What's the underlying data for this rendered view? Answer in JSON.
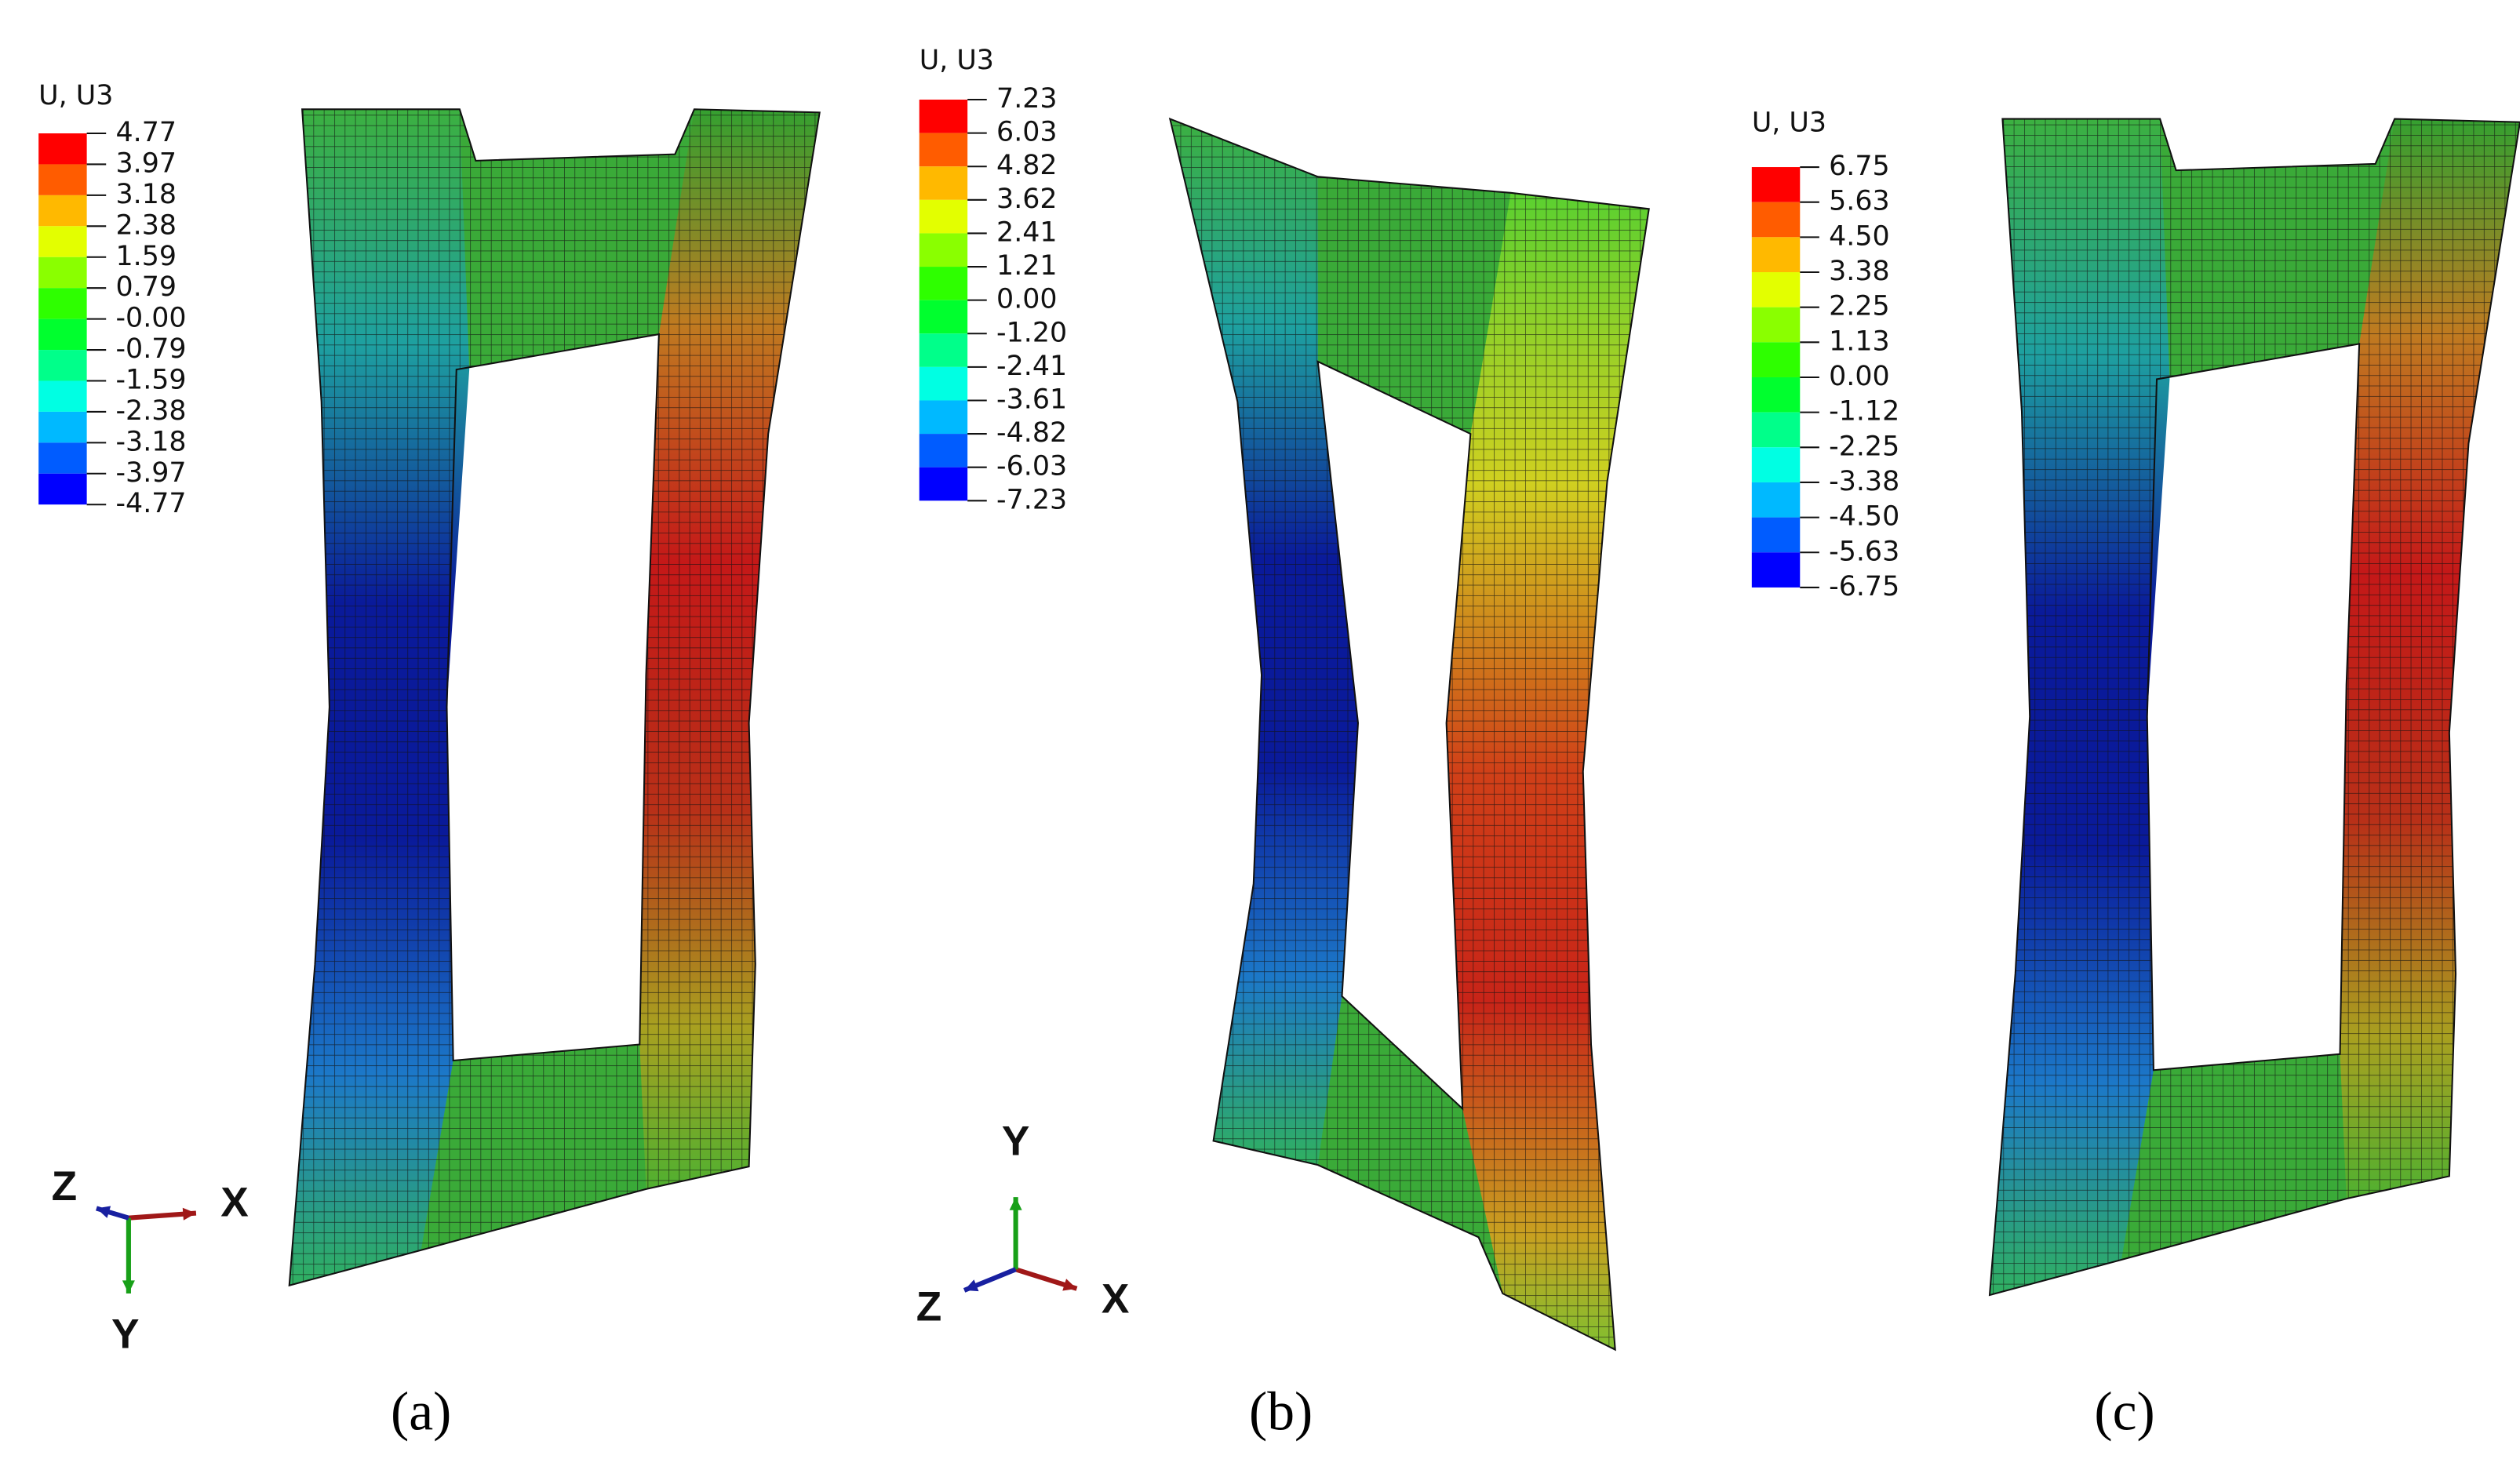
{
  "panels": [
    {
      "legend_title": "U, U3",
      "legend_labels": [
        "4.77",
        "3.97",
        "3.18",
        "2.38",
        "1.59",
        "0.79",
        "-0.00",
        "-0.79",
        "-1.59",
        "-2.38",
        "-3.18",
        "-3.97",
        "-4.77"
      ],
      "caption": "(a)",
      "triad": {
        "z": "Z",
        "x": "X",
        "y": "Y"
      }
    },
    {
      "legend_title": "U, U3",
      "legend_labels": [
        "7.23",
        "6.03",
        "4.82",
        "3.62",
        "2.41",
        "1.21",
        "0.00",
        "-1.20",
        "-2.41",
        "-3.61",
        "-4.82",
        "-6.03",
        "-7.23"
      ],
      "caption": "(b)",
      "triad": {
        "z": "Z",
        "x": "X",
        "y": "Y"
      }
    },
    {
      "legend_title": "U, U3",
      "legend_labels": [
        "6.75",
        "5.63",
        "4.50",
        "3.38",
        "2.25",
        "1.13",
        "0.00",
        "-1.12",
        "-2.25",
        "-3.38",
        "-4.50",
        "-5.63",
        "-6.75"
      ],
      "caption": "(c)"
    }
  ],
  "legend_colors": [
    "#ff0000",
    "#ff5c00",
    "#ffb900",
    "#e3ff00",
    "#8aff00",
    "#2eff00",
    "#00ff2e",
    "#00ff8a",
    "#00ffe3",
    "#00b9ff",
    "#005cff",
    "#0000ff"
  ]
}
